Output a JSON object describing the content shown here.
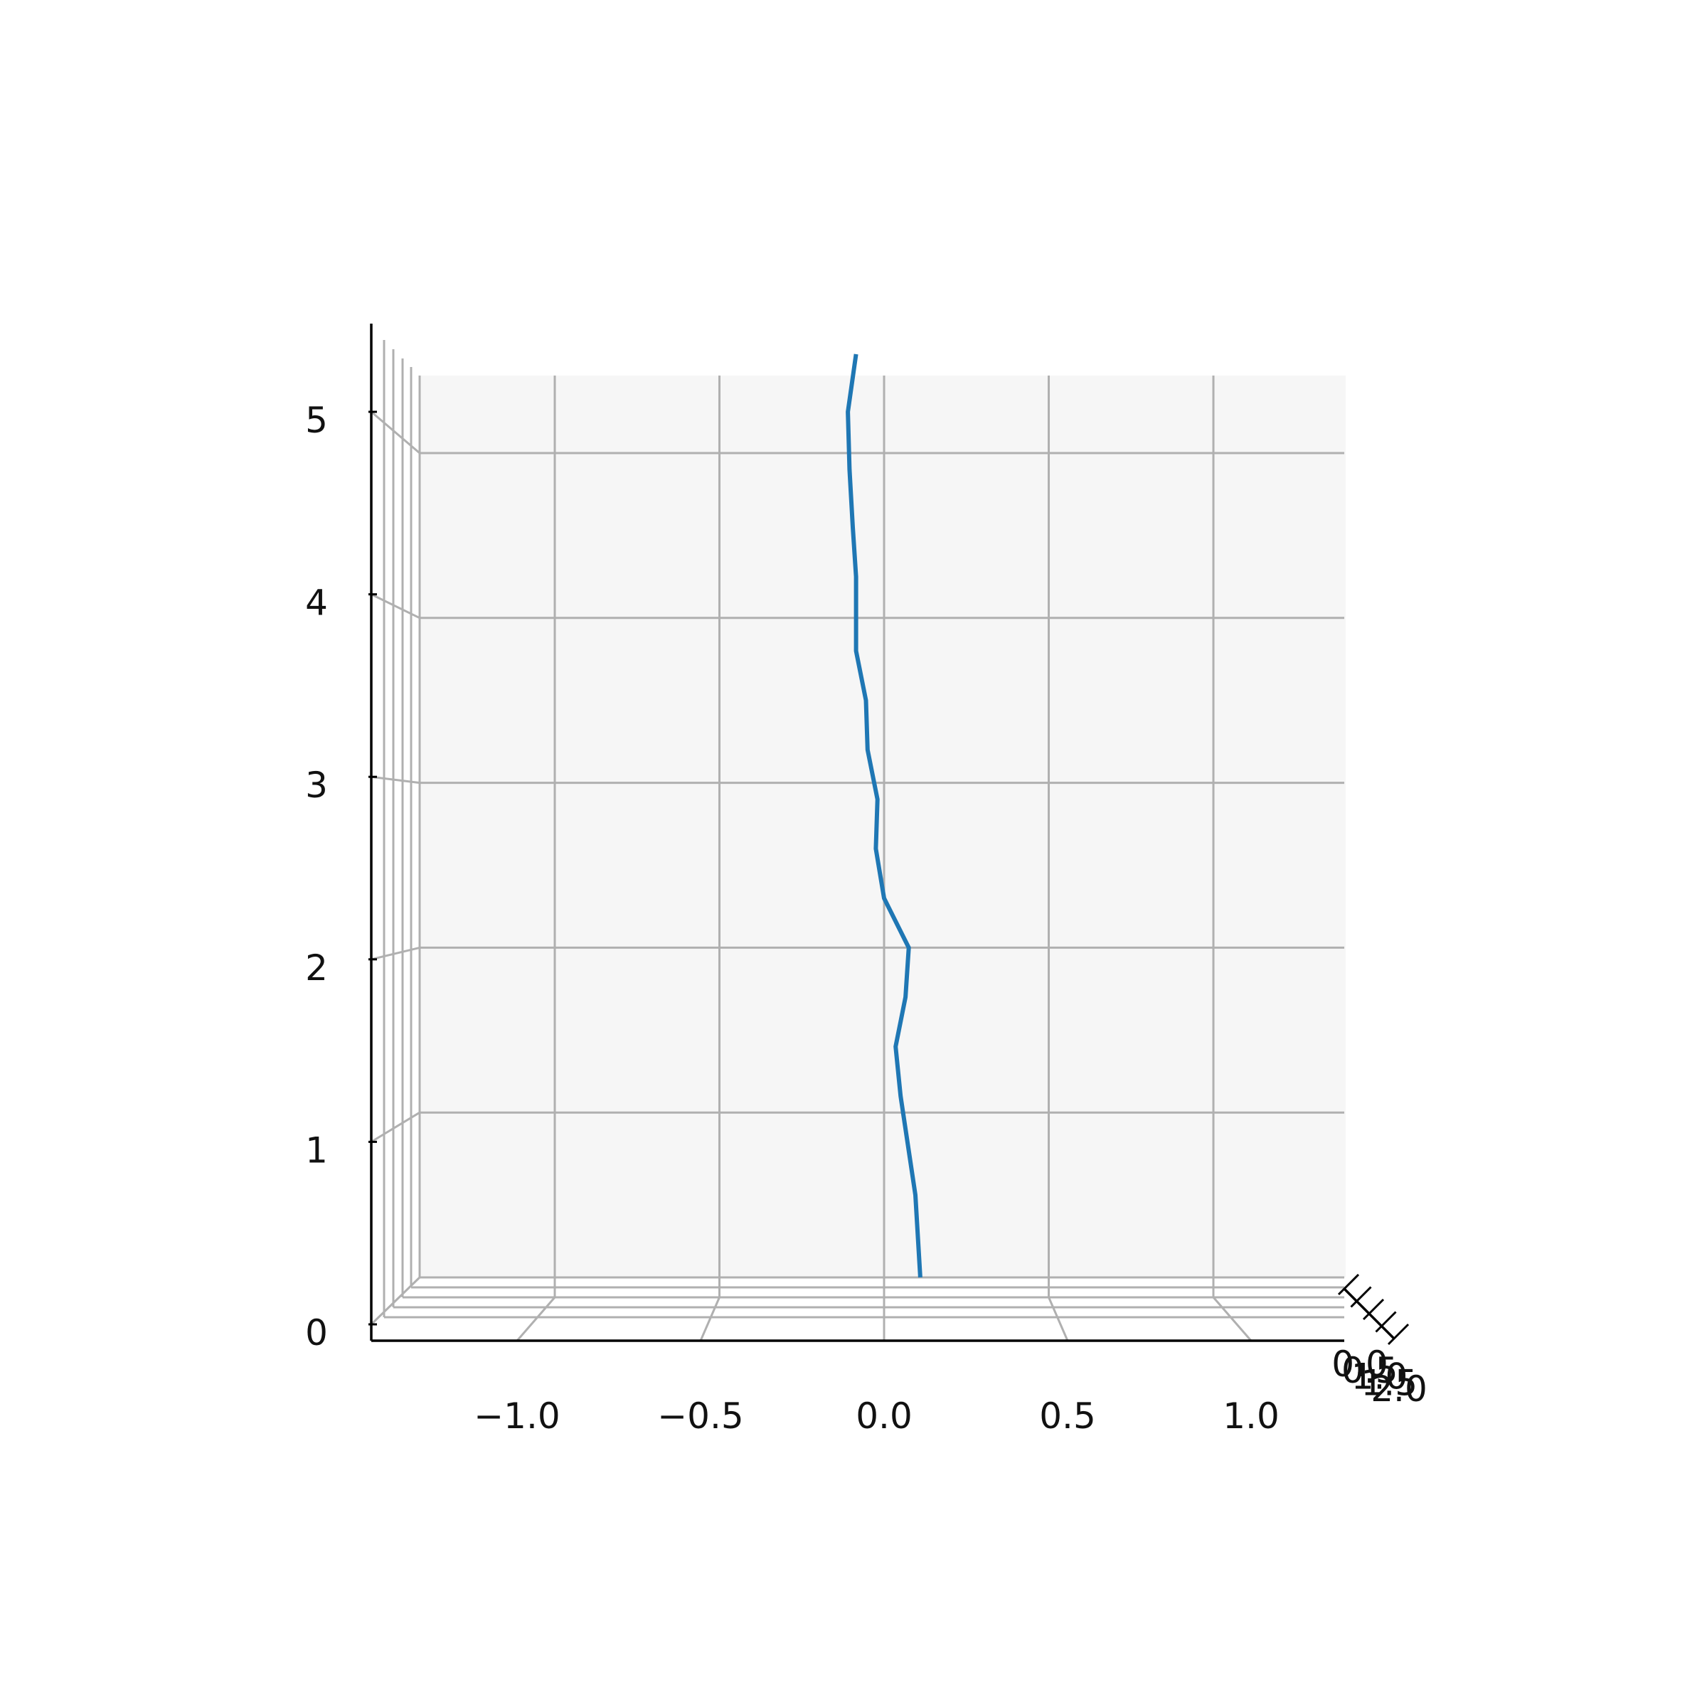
{
  "chart_data": {
    "type": "line",
    "title": "",
    "xlabel": "",
    "ylabel": "",
    "zlabel": "",
    "projection": "3d",
    "grid": true,
    "pane_color": "#f6f6f6",
    "grid_color": "#b0b0b0",
    "series_color": "#1f77b4",
    "xlim": [
      -1.4,
      1.25
    ],
    "ylim": [
      0.0,
      2.0
    ],
    "zlim": [
      0.0,
      5.3
    ],
    "x_ticks": [
      -1.0,
      -0.5,
      0.0,
      0.5,
      1.0
    ],
    "x_tick_labels": [
      "−1.0",
      "−0.5",
      "0.0",
      "0.5",
      "1.0"
    ],
    "y_ticks": [
      0.0,
      0.5,
      1.0,
      1.5,
      2.0
    ],
    "y_tick_labels": [
      "0.0",
      "0.5",
      "1.0",
      "1.5",
      "2.0"
    ],
    "z_ticks": [
      0,
      1,
      2,
      3,
      4,
      5
    ],
    "z_tick_labels": [
      "0",
      "1",
      "2",
      "3",
      "4",
      "5"
    ],
    "series": [
      {
        "x": [
          0.11,
          0.095,
          0.05,
          0.035,
          0.065,
          0.075,
          0.0,
          -0.025,
          -0.02,
          -0.05,
          -0.055,
          -0.085,
          -0.085,
          -0.085,
          -0.095,
          -0.105,
          -0.11,
          -0.085
        ],
        "z": [
          0.0,
          0.5,
          1.1,
          1.4,
          1.7,
          2.0,
          2.3,
          2.6,
          2.9,
          3.2,
          3.5,
          3.8,
          4.0,
          4.25,
          4.55,
          4.9,
          5.25,
          5.6
        ]
      }
    ]
  }
}
